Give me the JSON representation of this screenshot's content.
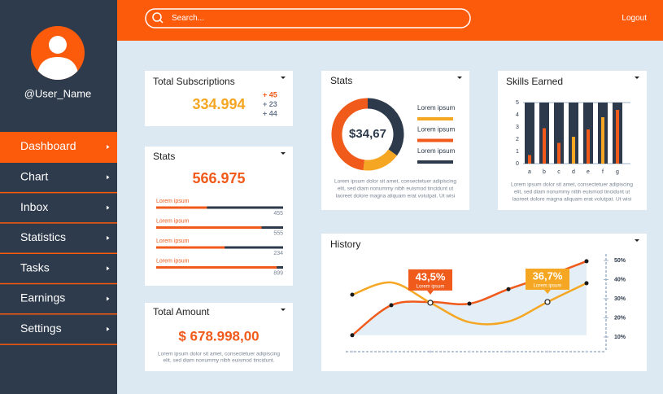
{
  "sidebar": {
    "username": "@User_Name",
    "menu": [
      "Dashboard",
      "Chart",
      "Inbox",
      "Statistics",
      "Tasks",
      "Earnings",
      "Settings"
    ]
  },
  "topbar": {
    "search": "Search...",
    "logout": "Logout"
  },
  "subscriptions": {
    "title": "Total Subscriptions",
    "value": "334.994",
    "changes": [
      "+ 45",
      "+ 23",
      "+ 44"
    ]
  },
  "stats": {
    "title": "Stats",
    "value": "566.975",
    "rows": [
      {
        "label": "Lorem ipsum",
        "value": 455,
        "progress": 40
      },
      {
        "label": "Lorem ipsum",
        "value": 555,
        "progress": 83
      },
      {
        "label": "Lorem ipsum",
        "value": 234,
        "progress": 54
      },
      {
        "label": "Lorem ipsum",
        "value": 899,
        "progress": 95
      }
    ]
  },
  "amount": {
    "title": "Total Amount",
    "value": "$ 678.998,00",
    "text": [
      "Lorem ipsum dolor sit amet, consectetuer adipiscing",
      "elit, sed diam nonummy nibh euismod tincidunt."
    ]
  },
  "donut": {
    "title": "Stats",
    "value": "$34,67",
    "legend": [
      {
        "label": "Lorem ipsum",
        "color": "#f5a623",
        "value": 17
      },
      {
        "label": "Lorem ipsum",
        "color": "#f05a1a",
        "value": 48
      },
      {
        "label": "Lorem ipsum",
        "color": "#2c3a4b",
        "value": 35
      }
    ],
    "text": [
      "Lorem ipsum dolor sit amet, consectetuer adipiscing",
      "elit, sed diam nonummy nibh euismod tincidunt ut",
      "laoreet dolore magna aliquam erat volutpat. Ut wisi"
    ]
  },
  "skills": {
    "title": "Skills Earned",
    "categories": [
      "a",
      "b",
      "c",
      "d",
      "e",
      "f",
      "g"
    ],
    "values": [
      0.7,
      2.9,
      1.7,
      2.2,
      2.8,
      3.8,
      4.4
    ],
    "colors": [
      "#f05a1a",
      "#f05a1a",
      "#f05a1a",
      "#f5a623",
      "#f05a1a",
      "#f5a623",
      "#f05a1a"
    ],
    "ylim": [
      0,
      5
    ],
    "yticks": [
      0,
      1,
      2,
      3,
      4,
      5
    ],
    "text": [
      "Lorem ipsum dolor sit amet, consectetuer adipiscing",
      "elit, sed diam nonummy nibh euismod tincidunt ut",
      "laoreet dolore magna aliquam erat volutpat. Ut wisi"
    ]
  },
  "history": {
    "title": "History",
    "ylim": [
      2.3,
      53.4
    ],
    "yticks": [
      {
        "value": 10,
        "label": "10%"
      },
      {
        "value": 20,
        "label": "20%"
      },
      {
        "value": 30,
        "label": "30%"
      },
      {
        "value": 40,
        "label": "40%"
      },
      {
        "value": 50,
        "label": "50%"
      }
    ],
    "series": [
      {
        "color": "#f05a1a",
        "values": [
          10.9,
          26.6,
          28.3,
          27.4,
          35.0,
          41.9,
          49.6
        ]
      },
      {
        "color": "#f5a623",
        "values": [
          32.1,
          38.5,
          27.9,
          17.7,
          18.1,
          28.3,
          38.1
        ]
      }
    ],
    "callouts": [
      {
        "value": "43,5%",
        "label": "Lorem ipsum",
        "color": "#f05a1a"
      },
      {
        "value": "36,7%",
        "label": "Lorem ipsum",
        "color": "#f5a623"
      }
    ]
  }
}
